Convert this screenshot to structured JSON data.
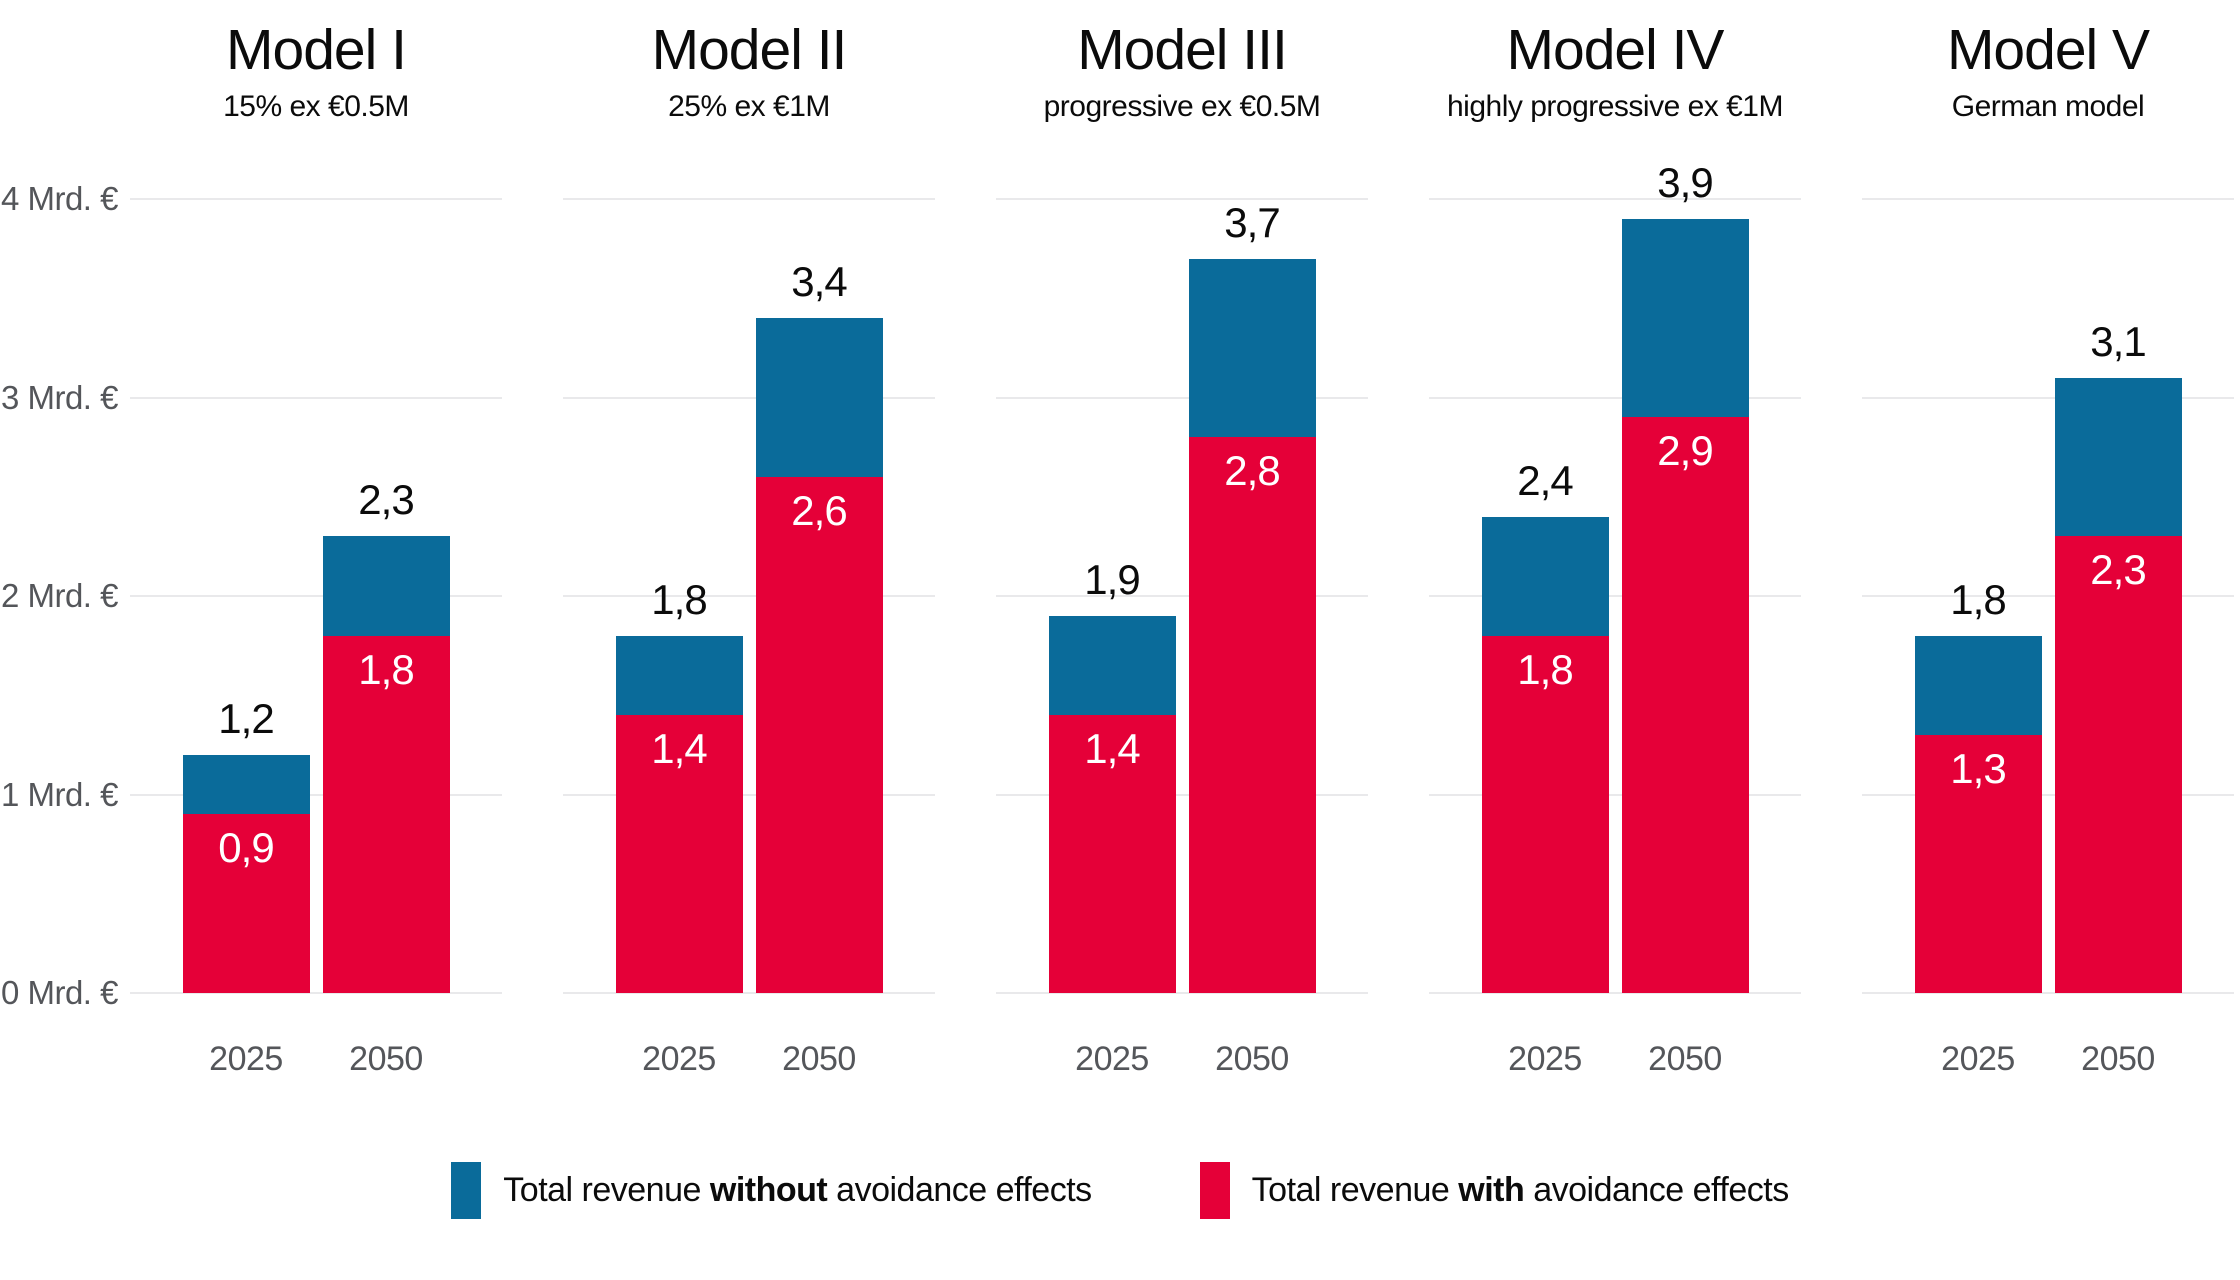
{
  "colors": {
    "bar_without": "#0a6b9a",
    "bar_with": "#e50038",
    "grid": "#e9e9eb",
    "axis_text": "#54565a",
    "text": "#0b0b0b",
    "value_label_inside": "#ffffff"
  },
  "chart_data": {
    "type": "bar",
    "unit": "Mrd. €",
    "ylim": [
      0,
      4
    ],
    "grid": true,
    "y_ticks": [
      {
        "value": 4,
        "label": "4 Mrd. €"
      },
      {
        "value": 3,
        "label": "3 Mrd. €"
      },
      {
        "value": 2,
        "label": "2 Mrd. €"
      },
      {
        "value": 1,
        "label": "1 Mrd. €"
      },
      {
        "value": 0,
        "label": "0 Mrd. €"
      }
    ],
    "categories": [
      "2025",
      "2050"
    ],
    "series_names": [
      "Total revenue without avoidance effects",
      "Total revenue with avoidance effects"
    ],
    "panels": [
      {
        "title": "Model I",
        "subtitle": "15% ex €0.5M",
        "bars": [
          {
            "year": "2025",
            "without": 1.2,
            "with": 0.9,
            "without_label": "1,2",
            "with_label": "0,9"
          },
          {
            "year": "2050",
            "without": 2.3,
            "with": 1.8,
            "without_label": "2,3",
            "with_label": "1,8"
          }
        ]
      },
      {
        "title": "Model II",
        "subtitle": "25% ex €1M",
        "bars": [
          {
            "year": "2025",
            "without": 1.8,
            "with": 1.4,
            "without_label": "1,8",
            "with_label": "1,4"
          },
          {
            "year": "2050",
            "without": 3.4,
            "with": 2.6,
            "without_label": "3,4",
            "with_label": "2,6"
          }
        ]
      },
      {
        "title": "Model III",
        "subtitle": "progressive ex €0.5M",
        "bars": [
          {
            "year": "2025",
            "without": 1.9,
            "with": 1.4,
            "without_label": "1,9",
            "with_label": "1,4"
          },
          {
            "year": "2050",
            "without": 3.7,
            "with": 2.8,
            "without_label": "3,7",
            "with_label": "2,8"
          }
        ]
      },
      {
        "title": "Model IV",
        "subtitle": "highly progressive ex €1M",
        "bars": [
          {
            "year": "2025",
            "without": 2.4,
            "with": 1.8,
            "without_label": "2,4",
            "with_label": "1,8"
          },
          {
            "year": "2050",
            "without": 3.9,
            "with": 2.9,
            "without_label": "3,9",
            "with_label": "2,9"
          }
        ]
      },
      {
        "title": "Model V",
        "subtitle": "German model",
        "bars": [
          {
            "year": "2025",
            "without": 1.8,
            "with": 1.3,
            "without_label": "1,8",
            "with_label": "1,3"
          },
          {
            "year": "2050",
            "without": 3.1,
            "with": 2.3,
            "without_label": "3,1",
            "with_label": "2,3"
          }
        ]
      }
    ],
    "legend": [
      {
        "series": "without",
        "prefix": "Total revenue ",
        "bold": "without",
        "suffix": " avoidance effects"
      },
      {
        "series": "with",
        "prefix": "Total revenue ",
        "bold": "with",
        "suffix": " avoidance effects"
      }
    ]
  }
}
